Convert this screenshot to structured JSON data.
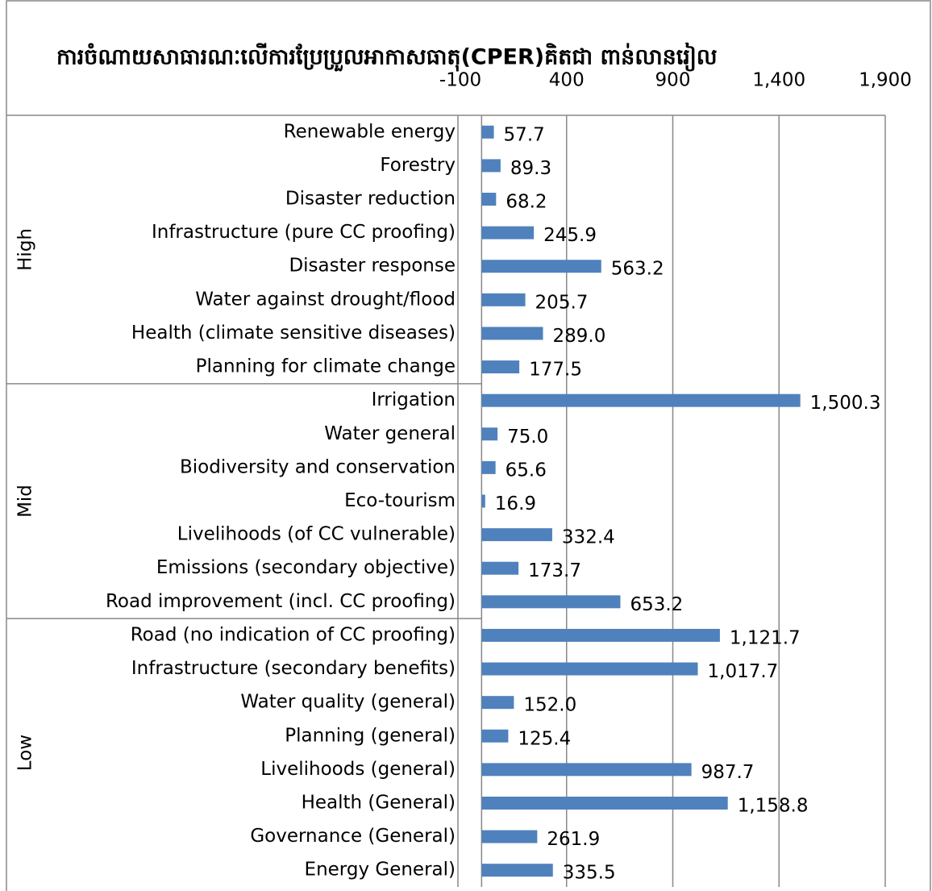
{
  "chart_data": {
    "type": "bar",
    "orientation": "horizontal",
    "title": "ការចំណាយសាធារណៈលើការប្រែប្រួលអាកាសធាតុ(CPER)គិតជា ពាន់លានរៀល",
    "color": "#4f81bd",
    "grid": true,
    "xlim": [
      -100,
      1900
    ],
    "xticks": [
      -100,
      400,
      900,
      {
        "value": 1400,
        "label": "1,400"
      },
      {
        "value": 1900,
        "label": "1,900"
      }
    ],
    "groups": [
      {
        "label": "High",
        "categories": [
          "Renewable energy",
          "Forestry",
          "Disaster reduction",
          "Infrastructure (pure CC proofing)",
          "Disaster response",
          "Water against drought/flood",
          "Health (climate sensitive diseases)",
          "Planning for climate change"
        ],
        "values": [
          57.7,
          89.3,
          68.2,
          245.9,
          563.2,
          205.7,
          289.0,
          177.5
        ],
        "value_labels": [
          "57.7",
          "89.3",
          "68.2",
          "245.9",
          "563.2",
          "205.7",
          "289.0",
          "177.5"
        ]
      },
      {
        "label": "Mid",
        "categories": [
          "Irrigation",
          "Water general",
          "Biodiversity and conservation",
          "Eco-tourism",
          "Livelihoods (of CC vulnerable)",
          "Emissions (secondary objective)",
          "Road improvement (incl. CC proofing)"
        ],
        "values": [
          1500.3,
          75.0,
          65.6,
          16.9,
          332.4,
          173.7,
          653.2
        ],
        "value_labels": [
          "1,500.3",
          "75.0",
          "65.6",
          "16.9",
          "332.4",
          "173.7",
          "653.2"
        ]
      },
      {
        "label": "Low",
        "categories": [
          "Road (no indication of CC proofing)",
          "Infrastructure (secondary benefits)",
          "Water quality (general)",
          "Planning (general)",
          "Livelihoods (general)",
          "Health (General)",
          "Governance (General)",
          "Energy General)"
        ],
        "values": [
          1121.7,
          1017.7,
          152.0,
          125.4,
          987.7,
          1158.8,
          261.9,
          335.5
        ],
        "value_labels": [
          "1,121.7",
          "1,017.7",
          "152.0",
          "125.4",
          "987.7",
          "1,158.8",
          "261.9",
          "335.5"
        ]
      }
    ]
  }
}
